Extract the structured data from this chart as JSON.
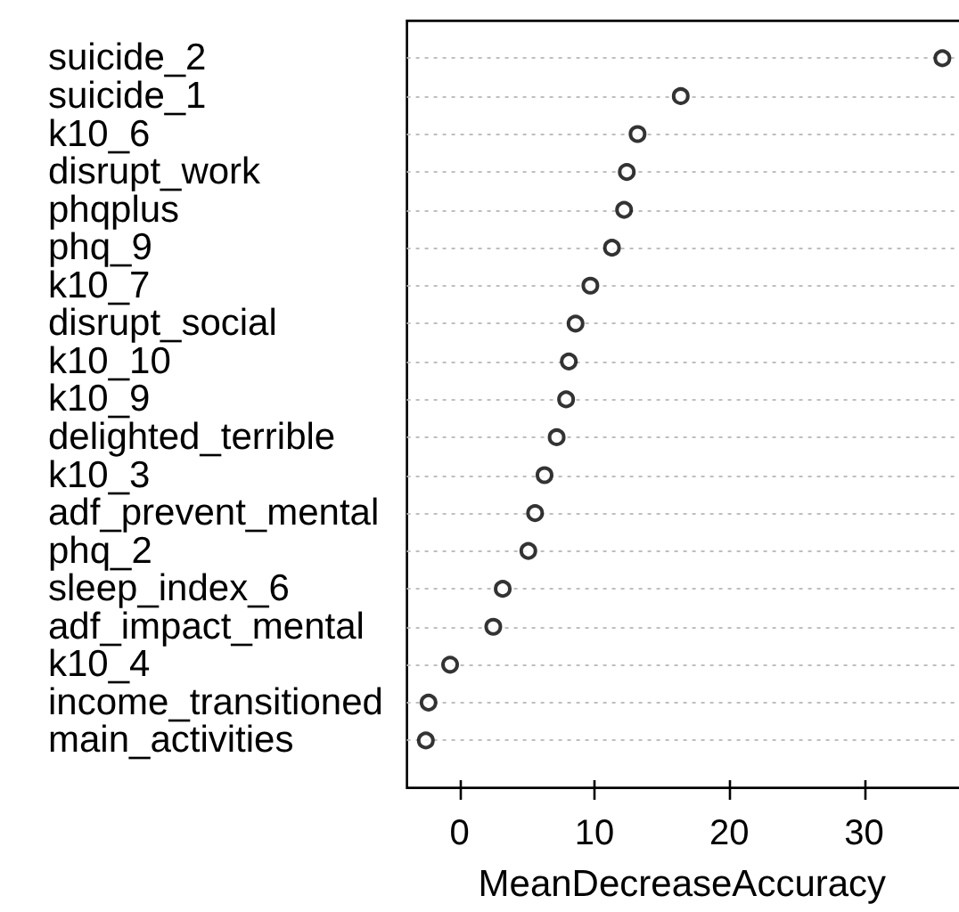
{
  "chart_data": {
    "type": "scatter",
    "orientation": "horizontal",
    "xlabel": "MeanDecreaseAccuracy",
    "categories": [
      "suicide_2",
      "suicide_1",
      "k10_6",
      "disrupt_work",
      "phqplus",
      "phq_9",
      "k10_7",
      "disrupt_social",
      "k10_10",
      "k10_9",
      "delighted_terrible",
      "k10_3",
      "adf_prevent_mental",
      "phq_2",
      "sleep_index_6",
      "adf_impact_mental",
      "k10_4",
      "income_transitioned",
      "main_activities"
    ],
    "values": [
      35.8,
      16.4,
      13.2,
      12.4,
      12.2,
      11.3,
      9.7,
      8.6,
      8.1,
      7.9,
      7.2,
      6.3,
      5.6,
      5.1,
      3.2,
      2.5,
      -0.7,
      -2.3,
      -2.5
    ],
    "color": "#000000",
    "xlim": [
      -3.9,
      36.9
    ],
    "xticks": [
      0,
      10,
      20,
      30
    ],
    "grid": "y",
    "marker": "circle"
  }
}
